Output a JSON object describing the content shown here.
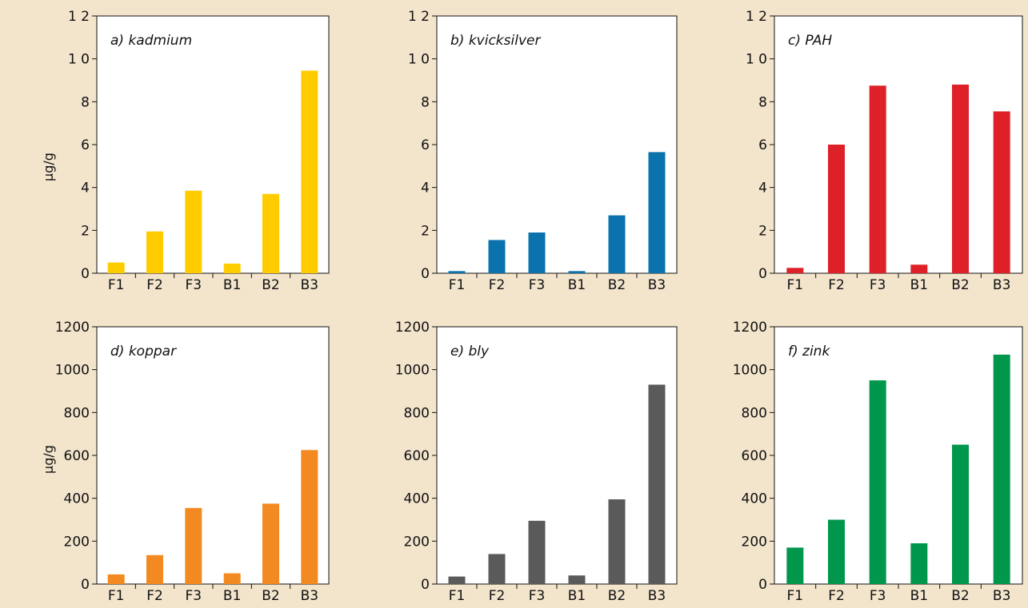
{
  "y_labels": [
    "µg/g",
    "µg/g"
  ],
  "chart_data": [
    {
      "type": "bar",
      "title": "a) kadmium",
      "categories": [
        "F1",
        "F2",
        "F3",
        "B1",
        "B2",
        "B3"
      ],
      "values": [
        0.5,
        1.95,
        3.85,
        0.45,
        3.7,
        9.45
      ],
      "ylim": [
        0,
        12
      ],
      "yticks": [
        0,
        2,
        4,
        6,
        8,
        10,
        12
      ],
      "ytick_labels": [
        "0",
        "2",
        "4",
        "6",
        "8",
        "1 0",
        "1 2"
      ],
      "color": "#ffcc00",
      "ylabel": "µg/g"
    },
    {
      "type": "bar",
      "title": "b) kvicksilver",
      "categories": [
        "F1",
        "F2",
        "F3",
        "B1",
        "B2",
        "B3"
      ],
      "values": [
        0.1,
        1.55,
        1.9,
        0.1,
        2.7,
        5.65
      ],
      "ylim": [
        0,
        12
      ],
      "yticks": [
        0,
        2,
        4,
        6,
        8,
        10,
        12
      ],
      "ytick_labels": [
        "0",
        "2",
        "4",
        "6",
        "8",
        "1 0",
        "1 2"
      ],
      "color": "#0a72ac",
      "ylabel": ""
    },
    {
      "type": "bar",
      "title": "c) PAH",
      "categories": [
        "F1",
        "F2",
        "F3",
        "B1",
        "B2",
        "B3"
      ],
      "values": [
        0.25,
        6.0,
        8.75,
        0.4,
        8.8,
        7.55
      ],
      "ylim": [
        0,
        12
      ],
      "yticks": [
        0,
        2,
        4,
        6,
        8,
        10,
        12
      ],
      "ytick_labels": [
        "0",
        "2",
        "4",
        "6",
        "8",
        "1 0",
        "1 2"
      ],
      "color": "#de2128",
      "ylabel": ""
    },
    {
      "type": "bar",
      "title": "d) koppar",
      "categories": [
        "F1",
        "F2",
        "F3",
        "B1",
        "B2",
        "B3"
      ],
      "values": [
        45,
        135,
        355,
        50,
        375,
        625
      ],
      "ylim": [
        0,
        1200
      ],
      "yticks": [
        0,
        200,
        400,
        600,
        800,
        1000,
        1200
      ],
      "ytick_labels": [
        "0",
        "200",
        "400",
        "600",
        "800",
        "1000",
        "1200"
      ],
      "color": "#f28a21",
      "ylabel": "µg/g"
    },
    {
      "type": "bar",
      "title": "e) bly",
      "categories": [
        "F1",
        "F2",
        "F3",
        "B1",
        "B2",
        "B3"
      ],
      "values": [
        35,
        140,
        295,
        40,
        395,
        930
      ],
      "ylim": [
        0,
        1200
      ],
      "yticks": [
        0,
        200,
        400,
        600,
        800,
        1000,
        1200
      ],
      "ytick_labels": [
        "0",
        "200",
        "400",
        "600",
        "800",
        "1000",
        "1200"
      ],
      "color": "#5a5a5a",
      "ylabel": ""
    },
    {
      "type": "bar",
      "title": "f) zink",
      "categories": [
        "F1",
        "F2",
        "F3",
        "B1",
        "B2",
        "B3"
      ],
      "values": [
        170,
        300,
        950,
        190,
        650,
        1070
      ],
      "ylim": [
        0,
        1200
      ],
      "yticks": [
        0,
        200,
        400,
        600,
        800,
        1000,
        1200
      ],
      "ytick_labels": [
        "0",
        "200",
        "400",
        "600",
        "800",
        "1000",
        "1200"
      ],
      "color": "#00964b",
      "ylabel": ""
    }
  ]
}
